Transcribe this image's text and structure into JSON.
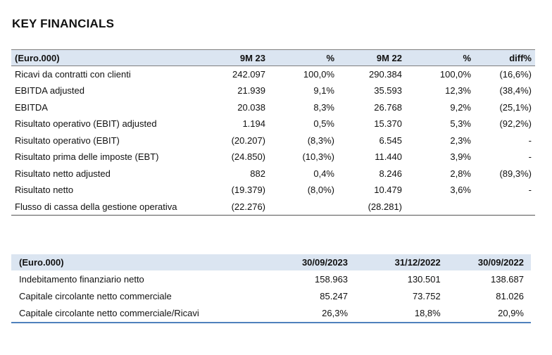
{
  "title": "KEY FINANCIALS",
  "table1": {
    "headers": [
      "(Euro.000)",
      "9M 23",
      "%",
      "9M 22",
      "%",
      "diff%"
    ],
    "rows": [
      [
        "Ricavi da contratti con clienti",
        "242.097",
        "100,0%",
        "290.384",
        "100,0%",
        "(16,6%)"
      ],
      [
        "EBITDA adjusted",
        "21.939",
        "9,1%",
        "35.593",
        "12,3%",
        "(38,4%)"
      ],
      [
        "EBITDA",
        "20.038",
        "8,3%",
        "26.768",
        "9,2%",
        "(25,1%)"
      ],
      [
        "Risultato operativo (EBIT) adjusted",
        "1.194",
        "0,5%",
        "15.370",
        "5,3%",
        "(92,2%)"
      ],
      [
        "Risultato operativo (EBIT)",
        "(20.207)",
        "(8,3%)",
        "6.545",
        "2,3%",
        "-"
      ],
      [
        "Risultato prima delle imposte (EBT)",
        "(24.850)",
        "(10,3%)",
        "11.440",
        "3,9%",
        "-"
      ],
      [
        "Risultato netto adjusted",
        "882",
        "0,4%",
        "8.246",
        "2,8%",
        "(89,3%)"
      ],
      [
        "Risultato netto",
        "(19.379)",
        "(8,0%)",
        "10.479",
        "3,6%",
        "-"
      ],
      [
        "Flusso di cassa della gestione operativa",
        "(22.276)",
        "",
        "(28.281)",
        "",
        ""
      ]
    ]
  },
  "table2": {
    "headers": [
      "(Euro.000)",
      "30/09/2023",
      "31/12/2022",
      "30/09/2022"
    ],
    "rows": [
      [
        "Indebitamento finanziario netto",
        "158.963",
        "130.501",
        "138.687"
      ],
      [
        "Capitale circolante netto commerciale",
        "85.247",
        "73.752",
        "81.026"
      ],
      [
        "Capitale circolante netto commerciale/Ricavi",
        "26,3%",
        "18,8%",
        "20,9%"
      ]
    ]
  },
  "colors": {
    "header_fill": "#dbe5f1",
    "rule_blue": "#4f81bd"
  }
}
